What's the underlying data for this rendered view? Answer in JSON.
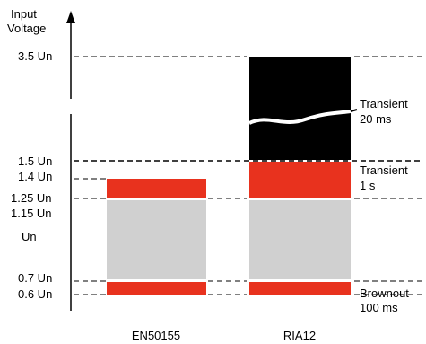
{
  "axis_title_line1": "Input",
  "axis_title_line2": "Voltage",
  "levels": {
    "l35": "3.5 Un",
    "l15": "1.5 Un",
    "l14": "1.4 Un",
    "l125": "1.25 Un",
    "l115": "1.15 Un",
    "un": "Un",
    "l07": "0.7 Un",
    "l06": "0.6 Un"
  },
  "annotations": {
    "transient20_line1": "Transient",
    "transient20_line2": "20 ms",
    "transient1_line1": "Transient",
    "transient1_line2": "1 s",
    "brownout_line1": "Brownout",
    "brownout_line2": "100 ms"
  },
  "columns": {
    "left": "EN50155",
    "right": "RIA12"
  },
  "colors": {
    "normal_band": "#d0d0d0",
    "limit_band": "#e8321e",
    "transient_band": "#000000"
  }
}
